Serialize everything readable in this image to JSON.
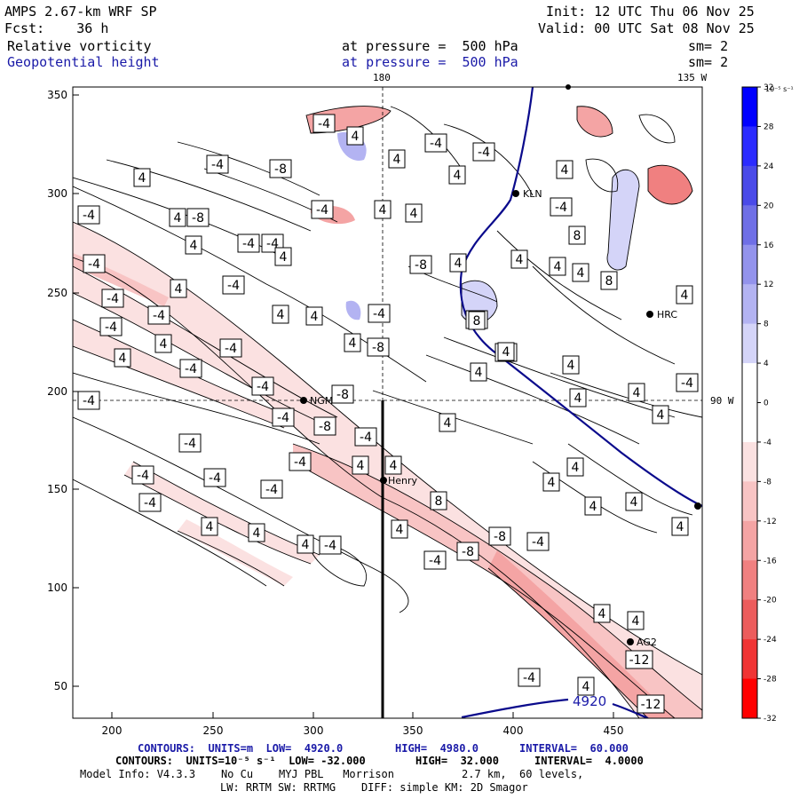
{
  "header": {
    "model_title": "AMPS 2.67-km WRF SP",
    "forecast": "Fcst:    36 h",
    "init": "Init: 12 UTC Thu 06 Nov 25",
    "valid": "Valid: 00 UTC Sat 08 Nov 25",
    "field1_name": "Relative vorticity",
    "field1_level": "at pressure =  500 hPa",
    "field1_sm": "sm= 2",
    "field2_name": "Geopotential height",
    "field2_level": "at pressure =  500 hPa",
    "field2_sm": "sm= 2"
  },
  "map": {
    "lon_top_1": "180",
    "lon_top_2": "135 W",
    "lon_right": "90 W",
    "x_ticks": [
      "200",
      "250",
      "300",
      "350",
      "400",
      "450"
    ],
    "y_ticks": [
      "350",
      "300",
      "250",
      "200",
      "150",
      "100",
      "50"
    ],
    "stations": {
      "kln": "KLN",
      "hrc": "HRC",
      "ngm": "NGM",
      "henry": "Henry",
      "ag2": "AG2"
    },
    "height_label": "4920",
    "vort_labels": {
      "a": "-4",
      "b": "-4",
      "c": "-8",
      "d": "4",
      "e": "4",
      "f": "-4",
      "g": "4",
      "h": "4",
      "i": "-4",
      "j": "4",
      "k": "-8",
      "l": "-4",
      "m": "4",
      "n": "4",
      "o": "-4",
      "p": "-4",
      "q": "4",
      "r": "-4",
      "s": "4",
      "t": "-4",
      "u": "-4",
      "v": "4",
      "w": "-4",
      "x": "4",
      "y": "4",
      "z": "4",
      "aa": "8",
      "ab": "8",
      "ac": "4",
      "ad": "4",
      "ae": "4",
      "af": "-8",
      "ag": "-4",
      "ah": "-8",
      "ai": "-4",
      "aj": "-4",
      "ak": "-4",
      "al": "-4",
      "am": "4",
      "an": "4",
      "ao": "-4",
      "ap": "-8",
      "aq": "-4",
      "ar": "4",
      "as": "-4",
      "at": "-4",
      "au": "-8",
      "av": "-4",
      "aw": "-8",
      "ax": "-4",
      "ay": "-4",
      "az": "-4",
      "ba": "4",
      "bb": "4",
      "bc": "4",
      "bd": "4",
      "be": "4",
      "bf": "4",
      "bg": "-4",
      "bh": "-4",
      "bi": "-4",
      "bj": "-4",
      "bk": "4",
      "bl": "4",
      "bm": "4",
      "bn": "-4",
      "bo": "4",
      "bp": "8",
      "bq": "-8",
      "br": "-8",
      "bs": "-4",
      "bt": "-4",
      "bu": "-12",
      "bv": "-12",
      "bw": "-4",
      "bx": "4",
      "by": "4",
      "bz": "4",
      "ca": "4",
      "cb": "4",
      "cc": "4",
      "cd": "4",
      "ce": "4",
      "cf": "4",
      "cg": "4",
      "ch": "-4",
      "ci": "4",
      "cj": "8",
      "ck": "4",
      "cl": "4"
    }
  },
  "colorbar": {
    "unit_label": "10⁻⁵ s⁻¹",
    "ticks": [
      "32",
      "28",
      "24",
      "20",
      "16",
      "12",
      "8",
      "4",
      "0",
      "-4",
      "-8",
      "-12",
      "-16",
      "-20",
      "-24",
      "-28",
      "-32"
    ],
    "colors": [
      "#0000ff",
      "#2b2bff",
      "#4a4ae8",
      "#6f6fe6",
      "#9393ec",
      "#b3b3f2",
      "#d4d4f8",
      "#ffffff",
      "#ffffff",
      "#fbe1e1",
      "#f8c4c4",
      "#f4a4a4",
      "#f08080",
      "#ec5c5c",
      "#f03434",
      "#ff0000"
    ]
  },
  "footer": {
    "line1_a": "CONTOURS:  UNITS=m  LOW=  4920.0",
    "line1_b": "HIGH=  4980.0",
    "line1_c": "INTERVAL=  60.000",
    "line2_a": "CONTOURS:  UNITS=10⁻⁵ s⁻¹  LOW= -32.000",
    "line2_b": "HIGH=  32.000",
    "line2_c": "INTERVAL=  4.0000",
    "line3_a": "Model Info: V4.3.3    No Cu    MYJ PBL   Morrison",
    "line3_b": "2.7 km,  60 levels,",
    "line4": "LW: RRTM SW: RRTMG    DIFF: simple KM: 2D Smagor"
  }
}
